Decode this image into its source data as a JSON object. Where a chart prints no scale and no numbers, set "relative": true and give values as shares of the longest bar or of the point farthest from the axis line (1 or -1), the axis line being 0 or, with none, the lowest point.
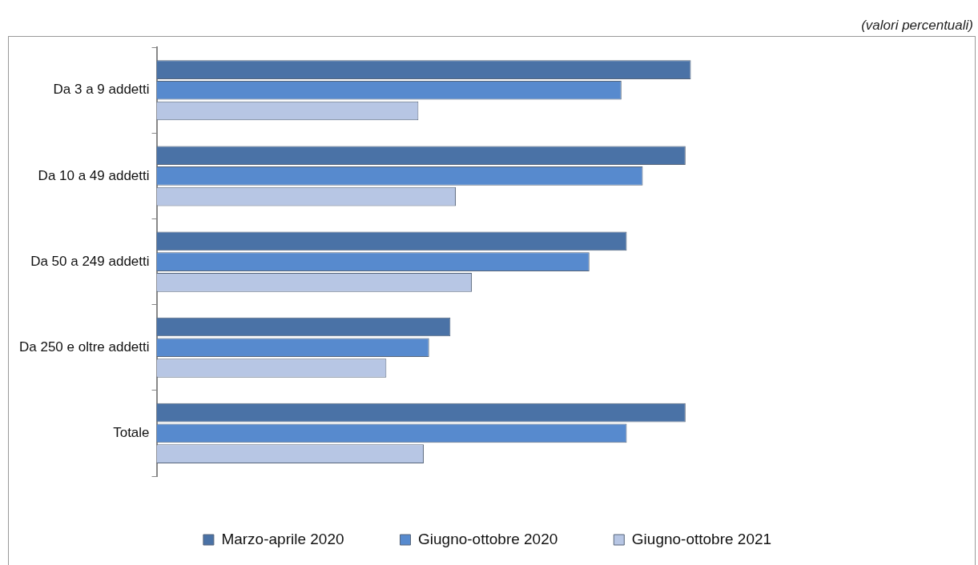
{
  "chart_data": {
    "type": "bar",
    "orientation": "horizontal",
    "relative": true,
    "subtitle": "(valori percentuali)",
    "categories": [
      "Da 3 a 9 addetti",
      "Da 10 a 49 addetti",
      "Da 50 a 249 addetti",
      "Da 250 e oltre addetti",
      "Totale"
    ],
    "series": [
      {
        "name": "Marzo-aprile 2020",
        "color": "#4a72a6",
        "values": [
          1,
          0.99,
          0.88,
          0.55,
          0.99
        ]
      },
      {
        "name": "Giugno-ottobre 2020",
        "color": "#578ace",
        "values": [
          0.87,
          0.91,
          0.81,
          0.51,
          0.88
        ]
      },
      {
        "name": "Giugno-ottobre 2021",
        "color": "#b7c6e4",
        "values": [
          0.49,
          0.56,
          0.59,
          0.43,
          0.5
        ]
      }
    ],
    "legend": "bottom"
  }
}
